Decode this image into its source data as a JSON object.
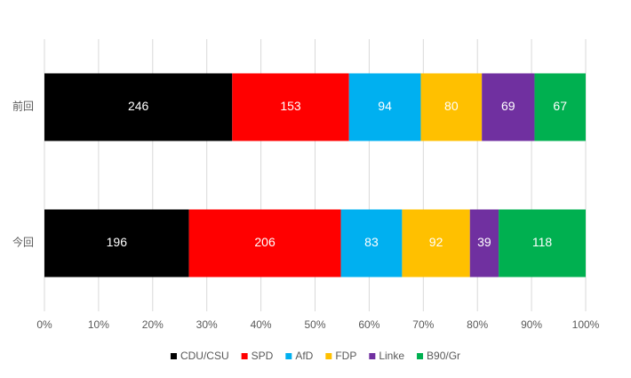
{
  "chart_data": {
    "type": "stacked_percent_barh",
    "categories": [
      "前回",
      "今回"
    ],
    "series": [
      {
        "name": "CDU/CSU",
        "color": "#000000",
        "values": [
          246,
          196
        ]
      },
      {
        "name": "SPD",
        "color": "#ff0000",
        "values": [
          153,
          206
        ]
      },
      {
        "name": "AfD",
        "color": "#00b0f0",
        "values": [
          94,
          83
        ]
      },
      {
        "name": "FDP",
        "color": "#ffc000",
        "values": [
          80,
          92
        ]
      },
      {
        "name": "Linke",
        "color": "#7030a0",
        "values": [
          69,
          39
        ]
      },
      {
        "name": "B90/Gr",
        "color": "#00b050",
        "values": [
          67,
          118
        ]
      }
    ],
    "xlim": [
      0,
      100
    ],
    "xticks": [
      {
        "value": 0,
        "label": "0%"
      },
      {
        "value": 10,
        "label": "10%"
      },
      {
        "value": 20,
        "label": "20%"
      },
      {
        "value": 30,
        "label": "30%"
      },
      {
        "value": 40,
        "label": "40%"
      },
      {
        "value": 50,
        "label": "50%"
      },
      {
        "value": 60,
        "label": "60%"
      },
      {
        "value": 70,
        "label": "70%"
      },
      {
        "value": 80,
        "label": "80%"
      },
      {
        "value": 90,
        "label": "90%"
      },
      {
        "value": 100,
        "label": "100%"
      }
    ],
    "grid": true,
    "legend": "bottom"
  }
}
